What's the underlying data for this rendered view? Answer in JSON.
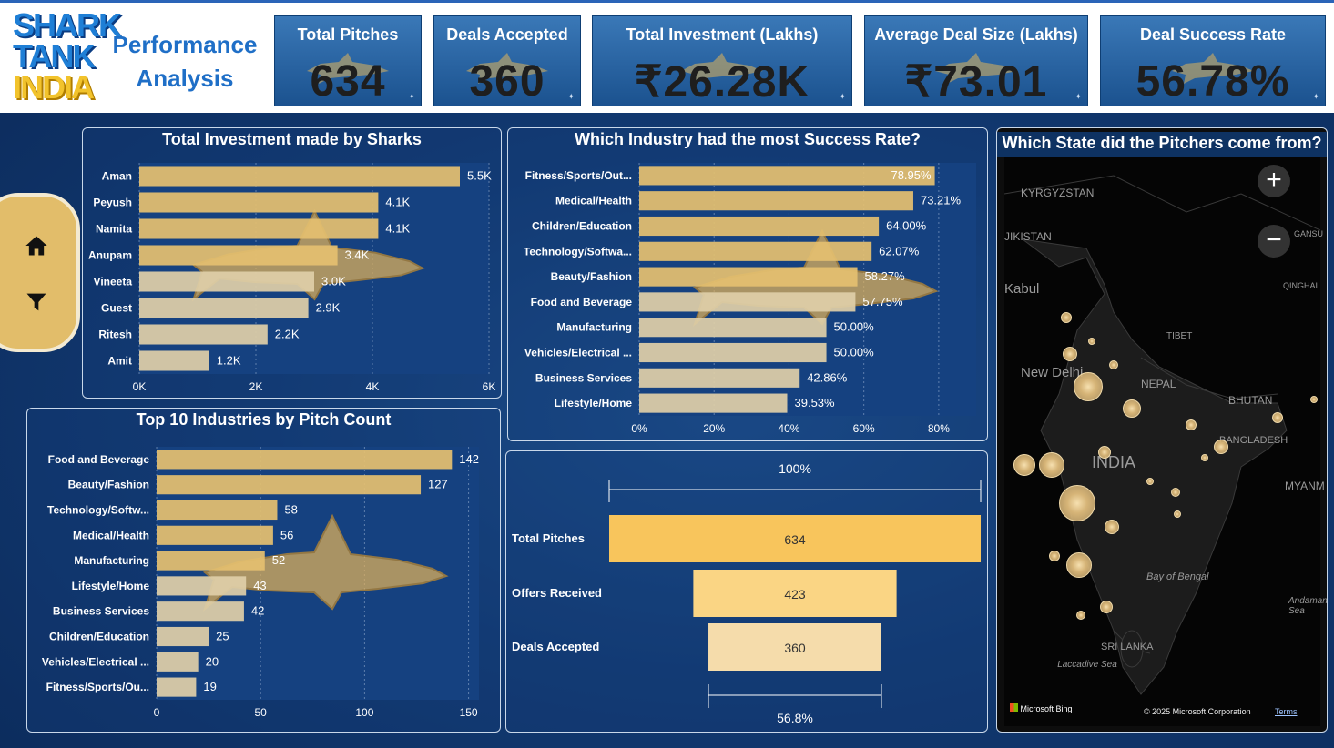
{
  "header": {
    "logo_line1": "SHARK",
    "logo_line2": "TANK",
    "logo_line3": "INDIA",
    "title_line1": "Performance",
    "title_line2": "Analysis"
  },
  "kpis": [
    {
      "label": "Total Pitches",
      "value": "634"
    },
    {
      "label": "Deals Accepted",
      "value": "360"
    },
    {
      "label": "Total Investment (Lakhs)",
      "value": "₹26.28K"
    },
    {
      "label": "Average Deal Size (Lakhs)",
      "value": "₹73.01"
    },
    {
      "label": "Deal Success Rate",
      "value": "56.78%"
    }
  ],
  "sidebar": {
    "home_icon": "home-icon",
    "filter_icon": "filter-icon"
  },
  "colors": {
    "bar_top": "#e8c274",
    "bar_light": "#e3cfa3",
    "funnel1": "#f8c55c",
    "funnel2": "#fad584",
    "funnel3": "#f5dcab"
  },
  "chart_data": [
    {
      "type": "bar",
      "title": "Total Investment made by Sharks",
      "orientation": "horizontal",
      "categories": [
        "Aman",
        "Peyush",
        "Namita",
        "Anupam",
        "Vineeta",
        "Guest",
        "Ritesh",
        "Amit"
      ],
      "values": [
        5500,
        4100,
        4100,
        3400,
        3000,
        2900,
        2200,
        1200
      ],
      "labels": [
        "5.5K",
        "4.1K",
        "4.1K",
        "3.4K",
        "3.0K",
        "2.9K",
        "2.2K",
        "1.2K"
      ],
      "xlim": [
        0,
        6000
      ],
      "xticks": [
        "0K",
        "2K",
        "4K",
        "6K"
      ]
    },
    {
      "type": "bar",
      "title": "Which Industry had the most Success Rate?",
      "orientation": "horizontal",
      "categories": [
        "Fitness/Sports/Out...",
        "Medical/Health",
        "Children/Education",
        "Technology/Softwa...",
        "Beauty/Fashion",
        "Food and Beverage",
        "Manufacturing",
        "Vehicles/Electrical ...",
        "Business Services",
        "Lifestyle/Home"
      ],
      "values": [
        78.95,
        73.21,
        64.0,
        62.07,
        58.27,
        57.75,
        50.0,
        50.0,
        42.86,
        39.53
      ],
      "labels": [
        "78.95%",
        "73.21%",
        "64.00%",
        "62.07%",
        "58.27%",
        "57.75%",
        "50.00%",
        "50.00%",
        "42.86%",
        "39.53%"
      ],
      "xlim": [
        0,
        90
      ],
      "xticks": [
        "0%",
        "20%",
        "40%",
        "60%",
        "80%"
      ]
    },
    {
      "type": "bar",
      "title": "Top 10 Industries by Pitch Count",
      "orientation": "horizontal",
      "categories": [
        "Food and Beverage",
        "Beauty/Fashion",
        "Technology/Softw...",
        "Medical/Health",
        "Manufacturing",
        "Lifestyle/Home",
        "Business Services",
        "Children/Education",
        "Vehicles/Electrical ...",
        "Fitness/Sports/Ou..."
      ],
      "values": [
        142,
        127,
        58,
        56,
        52,
        43,
        42,
        25,
        20,
        19
      ],
      "labels": [
        "142",
        "127",
        "58",
        "56",
        "52",
        "43",
        "42",
        "25",
        "20",
        "19"
      ],
      "xlim": [
        0,
        155
      ],
      "xticks": [
        "0",
        "50",
        "100",
        "150"
      ]
    },
    {
      "type": "funnel",
      "categories": [
        "Total Pitches",
        "Offers Received",
        "Deals Accepted"
      ],
      "values": [
        634,
        423,
        360
      ],
      "labels": [
        "634",
        "423",
        "360"
      ],
      "top_label": "100%",
      "bottom_label": "56.8%"
    }
  ],
  "map": {
    "title": "Which State did the Pitchers come from?",
    "zoom_in": "+",
    "zoom_out": "−",
    "labels": {
      "kyrgyzstan": "KYRGYZSTAN",
      "tajikistan": "JIKISTAN",
      "kabul": "Kabul",
      "gansu": "GANSU",
      "qinghai": "QINGHAI",
      "tibet": "TIBET",
      "new_delhi": "New Delhi",
      "nepal": "NEPAL",
      "bhutan": "BHUTAN",
      "bangladesh": "BANGLADESH",
      "india": "INDIA",
      "myanmar": "MYANM",
      "bay": "Bay of Bengal",
      "andaman": "Andaman Sea",
      "srilanka": "SRI LANKA",
      "laccadive": "Laccadive Sea",
      "bing": "Microsoft Bing",
      "copyright": "© 2025 Microsoft Corporation",
      "terms": "Terms"
    }
  }
}
